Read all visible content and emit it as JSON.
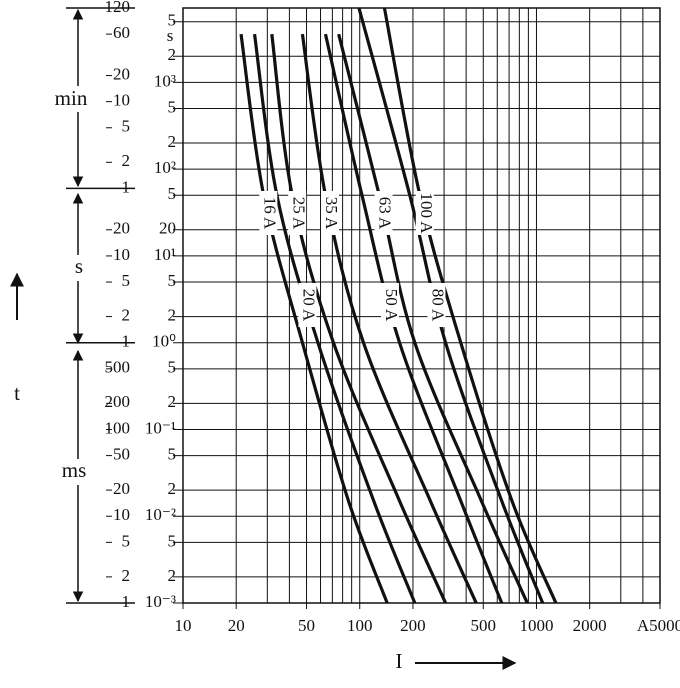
{
  "chart_data": {
    "type": "line",
    "x_label": "I",
    "y_label": "t",
    "y_units": [
      "min",
      "s",
      "ms"
    ],
    "y2_unit": "s",
    "xlog": true,
    "ylog": true,
    "grid": true,
    "xlim": [
      10,
      5000
    ],
    "ylim": [
      0.001,
      7200
    ],
    "y2lim": [
      0.001,
      7200
    ],
    "xticks": [
      10,
      20,
      50,
      100,
      200,
      500,
      1000,
      2000,
      {
        "value": 5000,
        "label": "A5000"
      }
    ],
    "xgrid": [
      10,
      20,
      30,
      40,
      50,
      60,
      70,
      80,
      90,
      100,
      200,
      300,
      400,
      500,
      600,
      700,
      800,
      900,
      1000,
      2000,
      3000,
      4000,
      5000
    ],
    "yticks": [
      {
        "value": 7200,
        "label": "120"
      },
      {
        "value": 3600,
        "label": "60"
      },
      {
        "value": 1200,
        "label": "20"
      },
      {
        "value": 600,
        "label": "10"
      },
      {
        "value": 300,
        "label": "5"
      },
      {
        "value": 120,
        "label": "2"
      },
      {
        "value": 60,
        "label": "1"
      },
      20,
      10,
      5,
      2,
      1,
      {
        "value": 0.5,
        "label": "500"
      },
      {
        "value": 0.2,
        "label": "200"
      },
      {
        "value": 0.1,
        "label": "100"
      },
      {
        "value": 0.05,
        "label": "50"
      },
      {
        "value": 0.02,
        "label": "20"
      },
      {
        "value": 0.01,
        "label": "10"
      },
      {
        "value": 0.005,
        "label": "5"
      },
      {
        "value": 0.002,
        "label": "2"
      },
      {
        "value": 0.001,
        "label": "1"
      }
    ],
    "y2ticks": [
      {
        "value": 5000,
        "label": "5"
      },
      {
        "value": 2000,
        "label": "2"
      },
      {
        "value": 1000,
        "label": "10³"
      },
      {
        "value": 500,
        "label": "5"
      },
      {
        "value": 200,
        "label": "2"
      },
      {
        "value": 100,
        "label": "10²"
      },
      {
        "value": 50,
        "label": "5"
      },
      20,
      {
        "value": 10,
        "label": "10¹"
      },
      5,
      2,
      {
        "value": 1,
        "label": "10⁰"
      },
      {
        "value": 0.5,
        "label": "5"
      },
      {
        "value": 0.2,
        "label": "2"
      },
      {
        "value": 0.1,
        "label": "10⁻¹"
      },
      {
        "value": 0.05,
        "label": "5"
      },
      {
        "value": 0.02,
        "label": "2"
      },
      {
        "value": 0.01,
        "label": "10⁻²"
      },
      {
        "value": 0.005,
        "label": "5"
      },
      {
        "value": 0.002,
        "label": "2"
      },
      {
        "value": 0.001,
        "label": "10⁻³"
      }
    ],
    "series": [
      {
        "name": "16 A",
        "color": "#111111",
        "x": [
          21.3,
          28.6,
          47.4,
          86.4,
          143
        ],
        "values": [
          3600,
          50,
          1,
          0.015,
          0.001
        ]
      },
      {
        "name": "20 A",
        "color": "#111111",
        "x": [
          25.4,
          34,
          58,
          120,
          205
        ],
        "values": [
          3600,
          50,
          1,
          0.015,
          0.001
        ]
      },
      {
        "name": "25 A",
        "color": "#111111",
        "x": [
          31.8,
          41.5,
          71,
          168,
          306
        ],
        "values": [
          3600,
          50,
          1,
          0.015,
          0.001
        ]
      },
      {
        "name": "35 A",
        "color": "#111111",
        "x": [
          47.4,
          64,
          105,
          251,
          456
        ],
        "values": [
          3600,
          50,
          1,
          0.015,
          0.001
        ]
      },
      {
        "name": "50 A",
        "color": "#111111",
        "x": [
          64,
          103,
          168,
          373,
          636
        ],
        "values": [
          3600,
          50,
          1,
          0.015,
          0.001
        ]
      },
      {
        "name": "63 A",
        "color": "#111111",
        "x": [
          76,
          129,
          205,
          488,
          887
        ],
        "values": [
          3600,
          50,
          1,
          0.015,
          0.001
        ]
      },
      {
        "name": "80 A",
        "color": "#111111",
        "x": [
          99,
          192,
          306,
          636,
          1084
        ],
        "values": [
          7200,
          50,
          1,
          0.015,
          0.001
        ]
      },
      {
        "name": "100 A",
        "color": "#111111",
        "x": [
          138,
          219,
          373,
          727,
          1288
        ],
        "values": [
          7200,
          50,
          1,
          0.015,
          0.001
        ]
      }
    ]
  }
}
